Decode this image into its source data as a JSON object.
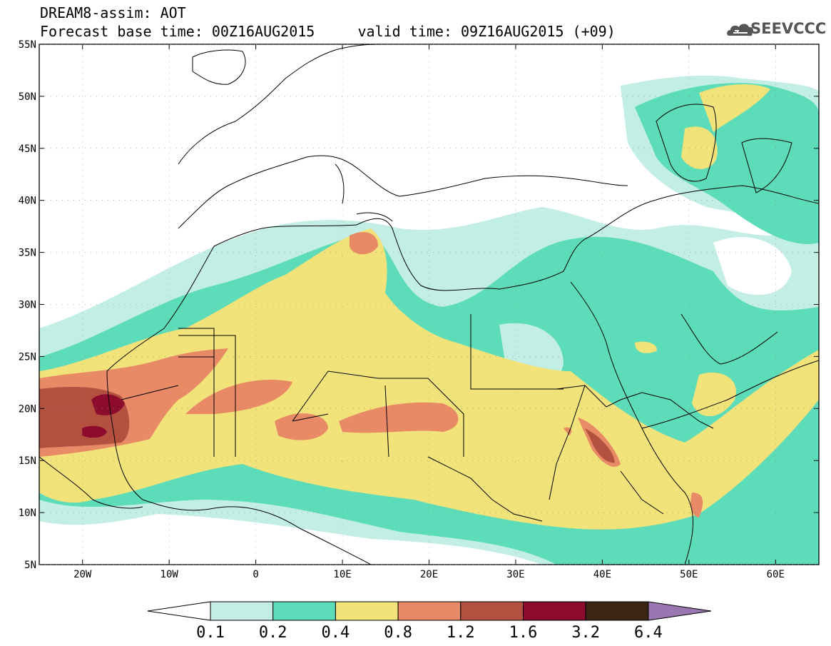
{
  "header": {
    "line1": "DREAM8-assim: AOT",
    "line2": "Forecast base time: 00Z16AUG2015     valid time: 09Z16AUG2015 (+09)"
  },
  "logo": {
    "text": "SEEVCCC",
    "icon": "cloud-icon"
  },
  "map": {
    "lon_range": [
      -25,
      65
    ],
    "lat_range": [
      5,
      55
    ],
    "x_ticks": [
      "20W",
      "10W",
      "0",
      "10E",
      "20E",
      "30E",
      "40E",
      "50E",
      "60E"
    ],
    "y_ticks": [
      "55N",
      "50N",
      "45N",
      "40N",
      "35N",
      "30N",
      "25N",
      "20N",
      "15N",
      "10N",
      "5N"
    ]
  },
  "legend": {
    "labels": [
      "0.1",
      "0.2",
      "0.4",
      "0.8",
      "1.2",
      "1.6",
      "3.2",
      "6.4"
    ],
    "colors": [
      "#c3eee6",
      "#5ddcb9",
      "#f2e27a",
      "#e88a66",
      "#b3503f",
      "#8d0c2e",
      "#3d2414",
      "#9a76b0"
    ],
    "below_color": "#ffffff"
  }
}
